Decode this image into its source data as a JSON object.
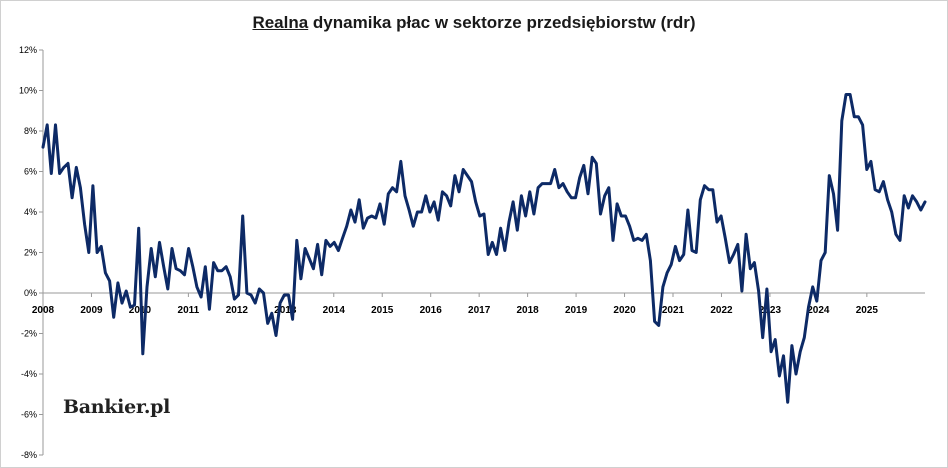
{
  "logo_text": "Bankier.pl",
  "chart_data": {
    "type": "line",
    "title_part1": "Realna",
    "title_part2": " dynamika płac w sektorze przedsiębiorstw (rdr)",
    "xlabel": "",
    "ylabel": "",
    "ylim": [
      -8,
      12
    ],
    "xlim": [
      2008,
      2026.2
    ],
    "yticks": [
      12,
      10,
      8,
      6,
      4,
      2,
      0,
      -2,
      -4,
      -6,
      -8
    ],
    "ytick_labels": [
      "12%",
      "10%",
      "8%",
      "6%",
      "4%",
      "2%",
      "0%",
      "-2%",
      "-4%",
      "-6%",
      "-8%"
    ],
    "xticks": [
      2008,
      2009,
      2010,
      2011,
      2012,
      2013,
      2014,
      2015,
      2016,
      2017,
      2018,
      2019,
      2020,
      2021,
      2022,
      2023,
      2024,
      2025
    ],
    "xtick_labels": [
      "2008",
      "2009",
      "2010",
      "2011",
      "2012",
      "2013",
      "2014",
      "2015",
      "2016",
      "2017",
      "2018",
      "2019",
      "2020",
      "2021",
      "2022",
      "2023",
      "2024",
      "2025"
    ],
    "grid": false,
    "line_color": "#0d2a66",
    "series": [
      {
        "name": "",
        "values": [
          7.2,
          8.3,
          5.9,
          8.3,
          5.9,
          6.2,
          6.4,
          4.7,
          6.2,
          5.2,
          3.4,
          2.0,
          5.3,
          2.0,
          2.3,
          1.0,
          0.6,
          -1.2,
          0.5,
          -0.5,
          0.1,
          -0.7,
          -0.6,
          3.2,
          -3.0,
          0.3,
          2.2,
          0.8,
          2.5,
          1.3,
          0.2,
          2.2,
          1.2,
          1.1,
          0.9,
          2.2,
          1.3,
          0.3,
          -0.2,
          1.3,
          -0.8,
          1.5,
          1.1,
          1.1,
          1.3,
          0.8,
          -0.3,
          -0.1,
          3.8,
          0.0,
          -0.1,
          -0.5,
          0.2,
          0.0,
          -1.5,
          -1.0,
          -2.1,
          -0.5,
          -0.1,
          -0.1,
          -1.3,
          2.6,
          0.7,
          2.2,
          1.7,
          1.2,
          2.4,
          0.9,
          2.6,
          2.3,
          2.5,
          2.1,
          2.7,
          3.3,
          4.1,
          3.5,
          4.6,
          3.2,
          3.7,
          3.8,
          3.7,
          4.4,
          3.4,
          4.9,
          5.2,
          5.0,
          6.5,
          4.8,
          4.1,
          3.3,
          4.0,
          4.0,
          4.8,
          4.0,
          4.5,
          3.6,
          5.0,
          4.8,
          4.3,
          5.8,
          5.0,
          6.1,
          5.8,
          5.5,
          4.5,
          3.8,
          3.9,
          1.9,
          2.5,
          1.9,
          3.2,
          2.1,
          3.5,
          4.5,
          3.1,
          4.8,
          3.8,
          5.0,
          3.9,
          5.2,
          5.4,
          5.4,
          5.4,
          6.1,
          5.2,
          5.4,
          5.0,
          4.7,
          4.7,
          5.7,
          6.3,
          4.9,
          6.7,
          6.4,
          3.9,
          4.8,
          5.2,
          2.6,
          4.4,
          3.8,
          3.8,
          3.3,
          2.6,
          2.7,
          2.6,
          2.9,
          1.6,
          -1.4,
          -1.6,
          0.3,
          1.0,
          1.4,
          2.3,
          1.6,
          1.9,
          4.1,
          2.1,
          2.0,
          4.6,
          5.3,
          5.1,
          5.1,
          3.5,
          3.8,
          2.7,
          1.5,
          1.9,
          2.4,
          0.1,
          2.9,
          1.2,
          1.5,
          0.1,
          -2.2,
          0.2,
          -2.9,
          -2.3,
          -4.1,
          -3.1,
          -5.4,
          -2.6,
          -4.0,
          -2.9,
          -2.2,
          -0.7,
          0.3,
          -0.4,
          1.6,
          2.0,
          5.8,
          4.9,
          3.1,
          8.5,
          9.8,
          9.8,
          8.7,
          8.7,
          8.3,
          6.1,
          6.5,
          5.1,
          5.0,
          5.5,
          4.6,
          4.0,
          2.9,
          2.6,
          4.8,
          4.2,
          4.8,
          4.5,
          4.1,
          4.5
        ]
      }
    ]
  }
}
